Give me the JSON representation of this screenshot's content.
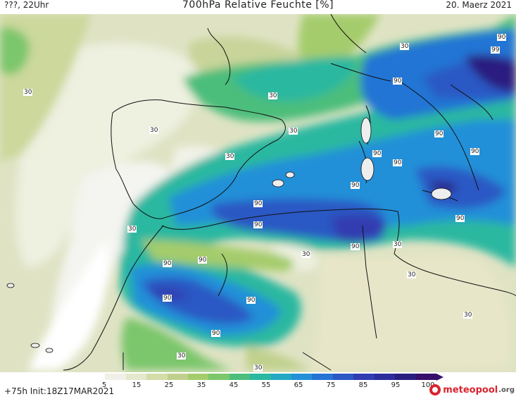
{
  "header": {
    "left": "???, 22Uhr",
    "title": "700hPa Relative Feuchte [%]",
    "date": "20. Maerz 2021"
  },
  "contour_labels": [
    {
      "text": "90"
    },
    {
      "text": "99"
    },
    {
      "text": "30"
    },
    {
      "text": "90"
    },
    {
      "text": "30"
    },
    {
      "text": "30"
    },
    {
      "text": "30"
    },
    {
      "text": "30"
    },
    {
      "text": "90"
    },
    {
      "text": "90"
    },
    {
      "text": "30"
    },
    {
      "text": "90"
    },
    {
      "text": "90"
    },
    {
      "text": "90"
    },
    {
      "text": "30"
    },
    {
      "text": "90"
    },
    {
      "text": "90"
    },
    {
      "text": "30"
    },
    {
      "text": "90"
    },
    {
      "text": "90"
    },
    {
      "text": "90"
    },
    {
      "text": "30"
    },
    {
      "text": "90"
    },
    {
      "text": "90"
    },
    {
      "text": "30"
    },
    {
      "text": "30"
    },
    {
      "text": "30"
    },
    {
      "text": "90"
    }
  ],
  "colorbar": {
    "ticks": [
      "5",
      "15",
      "25",
      "35",
      "45",
      "55",
      "65",
      "75",
      "85",
      "95",
      "100"
    ],
    "colors": [
      "#ffffff",
      "#f0f0e8",
      "#e4e8cc",
      "#d4dca8",
      "#c0d08c",
      "#a4cc6c",
      "#7cc66c",
      "#4cbe7c",
      "#2ab8a0",
      "#24a8c4",
      "#2490d8",
      "#2474d4",
      "#2c58c4",
      "#303cb0",
      "#2c2c9c",
      "#2a1e80",
      "#36106a"
    ]
  },
  "footer": {
    "run_info": "+75h Init:18Z17MAR2021",
    "brand_name": "meteopool",
    "brand_tld": ".org"
  }
}
